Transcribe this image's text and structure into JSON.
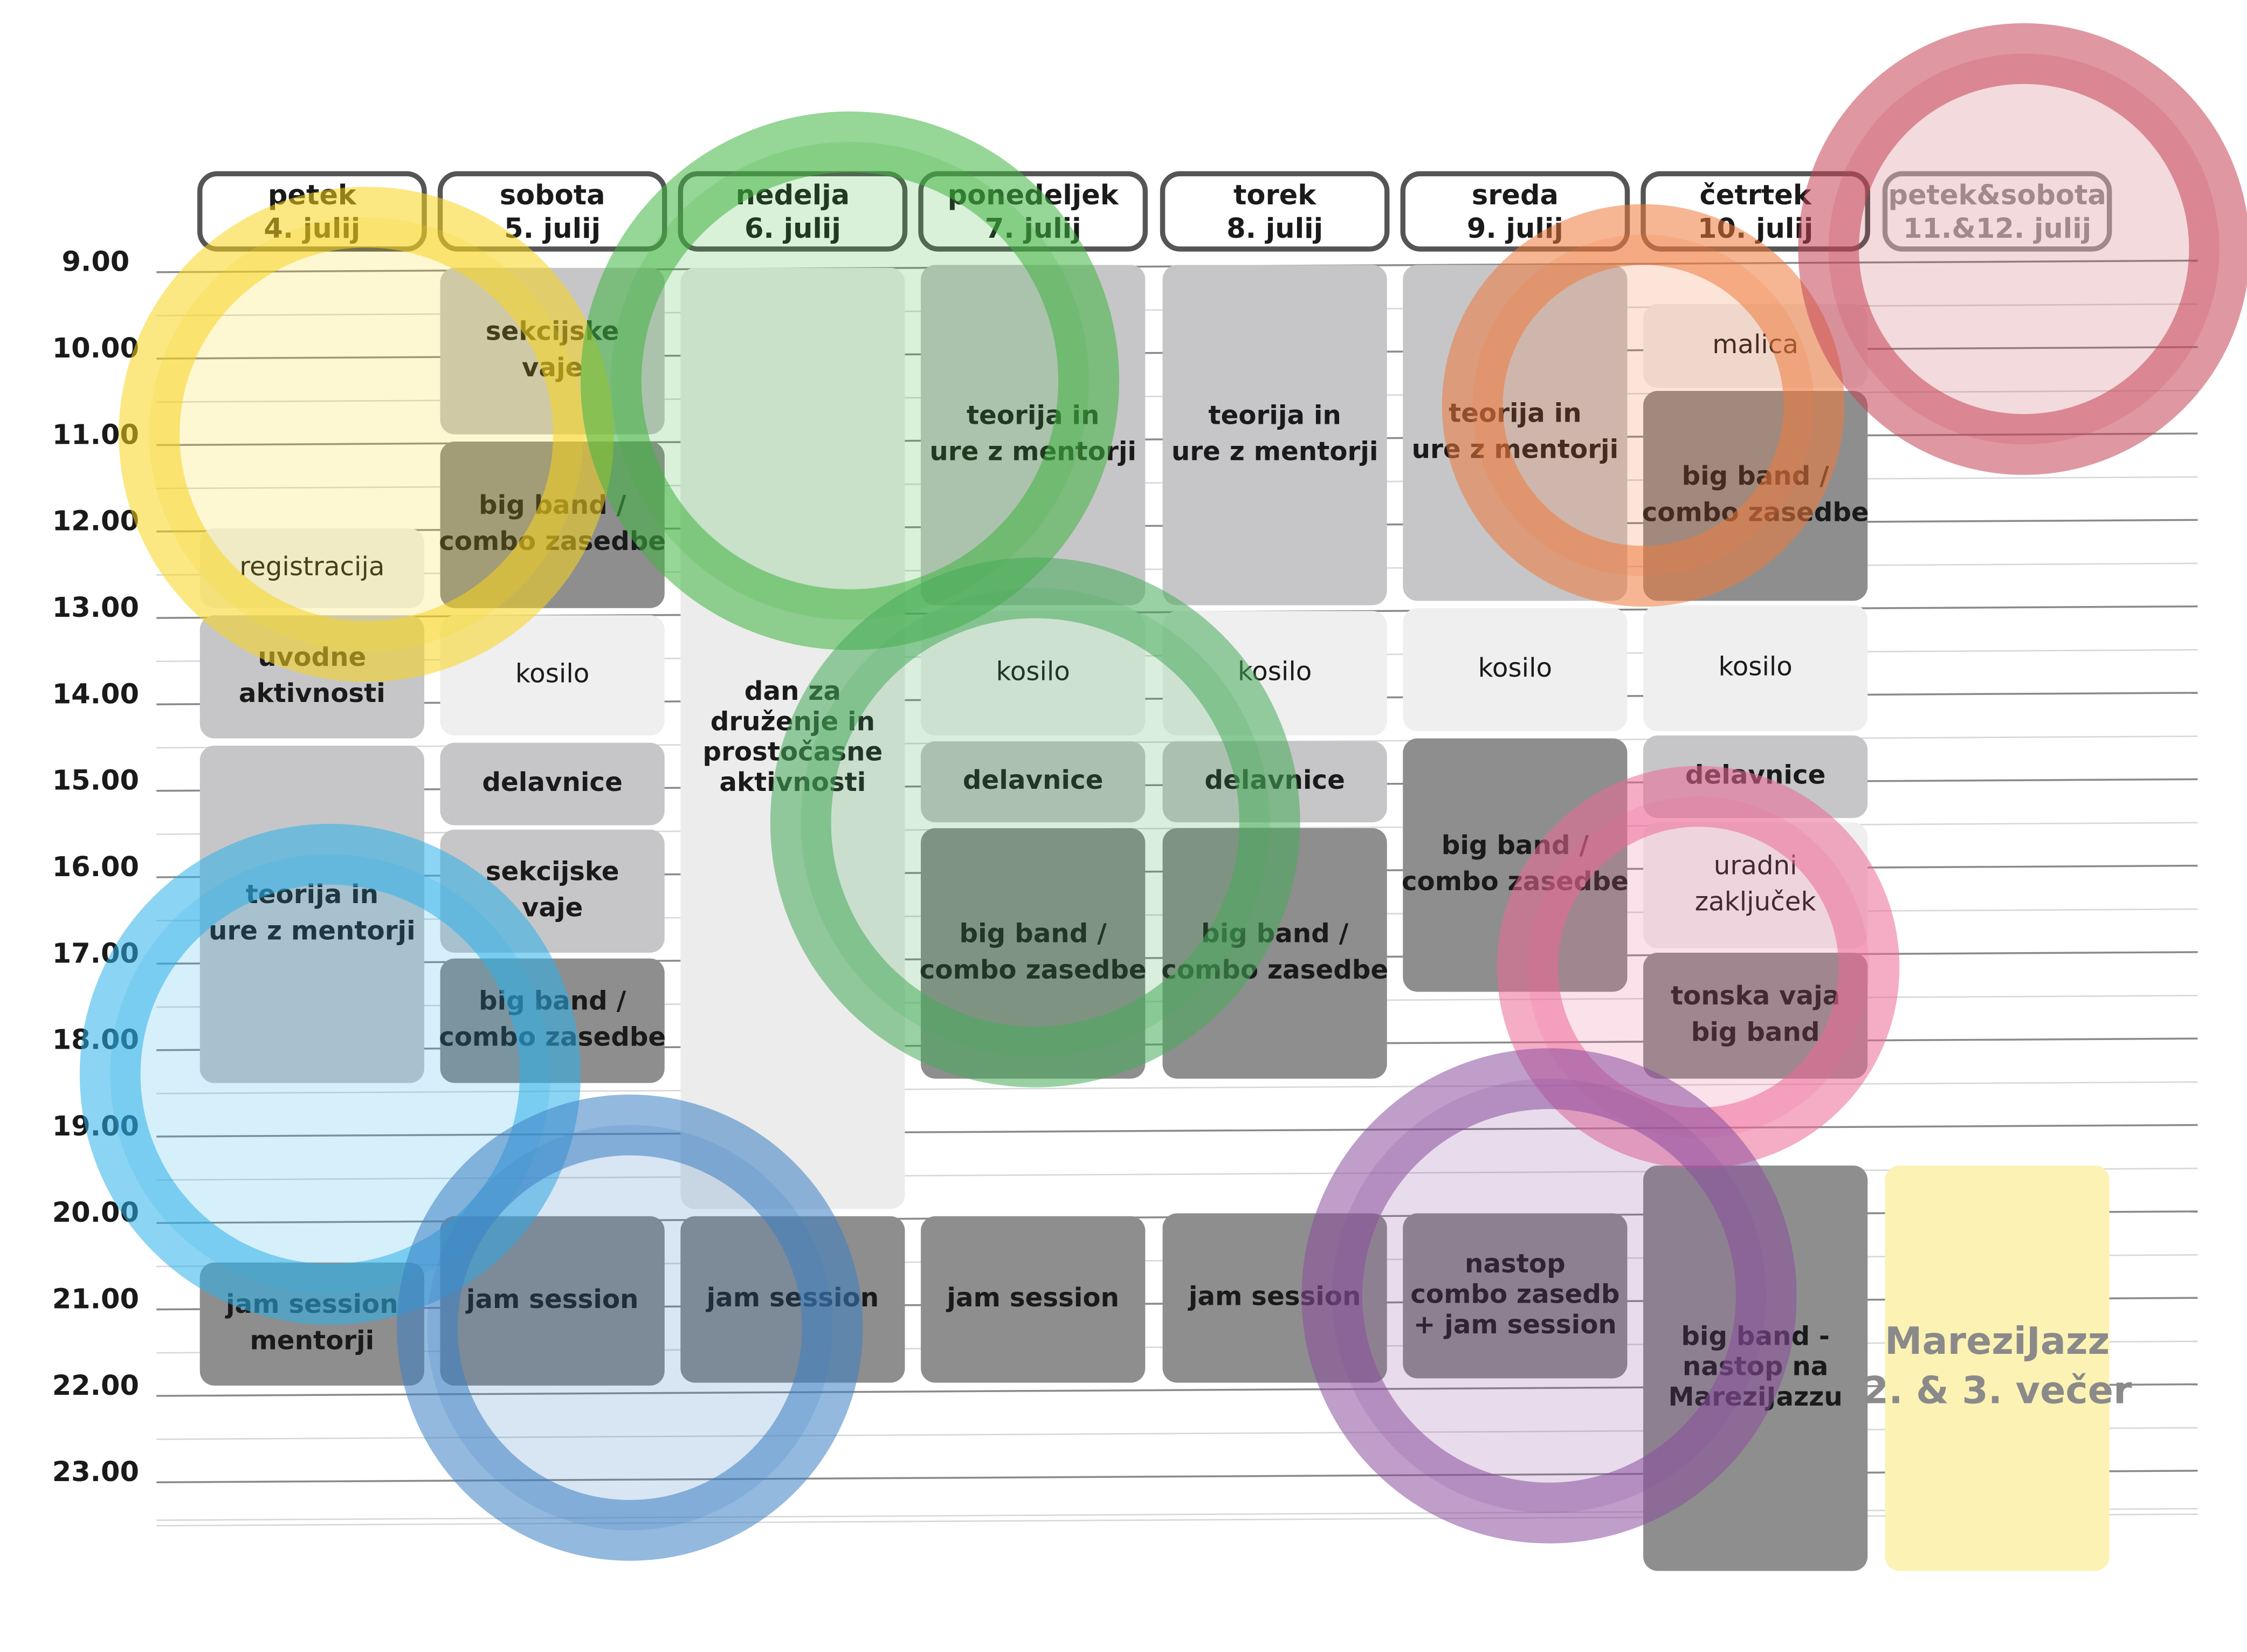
{
  "days": [
    {
      "name": "petek",
      "date": "4. julij"
    },
    {
      "name": "sobota",
      "date": "5. julij"
    },
    {
      "name": "nedelja",
      "date": "6. julij"
    },
    {
      "name": "ponedeljek",
      "date": "7. julij"
    },
    {
      "name": "torek",
      "date": "8. julij"
    },
    {
      "name": "sreda",
      "date": "9. julij"
    },
    {
      "name": "četrtek",
      "date": "10. julij"
    },
    {
      "name": "petek&sobota",
      "date": "11.&12. julij"
    }
  ],
  "times": [
    "9.00",
    "10.00",
    "11.00",
    "12.00",
    "13.00",
    "14.00",
    "15.00",
    "16.00",
    "17.00",
    "18.00",
    "19.00",
    "20.00",
    "21.00",
    "22.00",
    "23.00"
  ],
  "columns": [
    [
      {
        "lines": [
          "registracija"
        ]
      },
      {
        "lines": [
          "uvodne",
          "aktivnosti"
        ]
      },
      {
        "lines": [
          "teorija in",
          "ure z mentorji"
        ]
      },
      {
        "lines": [
          "jam session",
          "mentorji"
        ]
      }
    ],
    [
      {
        "lines": [
          "sekcijske",
          "vaje"
        ]
      },
      {
        "lines": [
          "big band /",
          "combo zasedbe"
        ]
      },
      {
        "lines": [
          "kosilo"
        ]
      },
      {
        "lines": [
          "delavnice"
        ]
      },
      {
        "lines": [
          "sekcijske",
          "vaje"
        ]
      },
      {
        "lines": [
          "big band /",
          "combo zasedbe"
        ]
      },
      {
        "lines": [
          "jam session"
        ]
      }
    ],
    [
      {
        "lines": [
          "dan za",
          "druženje in",
          "prostočasne",
          "aktivnosti"
        ]
      },
      {
        "lines": [
          "jam session"
        ]
      }
    ],
    [
      {
        "lines": [
          "teorija in",
          "ure z mentorji"
        ]
      },
      {
        "lines": [
          "kosilo"
        ]
      },
      {
        "lines": [
          "delavnice"
        ]
      },
      {
        "lines": [
          "big band /",
          "combo zasedbe"
        ]
      },
      {
        "lines": [
          "jam session"
        ]
      }
    ],
    [
      {
        "lines": [
          "teorija in",
          "ure z mentorji"
        ]
      },
      {
        "lines": [
          "kosilo"
        ]
      },
      {
        "lines": [
          "delavnice"
        ]
      },
      {
        "lines": [
          "big band /",
          "combo zasedbe"
        ]
      },
      {
        "lines": [
          "jam session"
        ]
      }
    ],
    [
      {
        "lines": [
          "teorija in",
          "ure z mentorji"
        ]
      },
      {
        "lines": [
          "kosilo"
        ]
      },
      {
        "lines": [
          "big band /",
          "combo zasedbe"
        ]
      },
      {
        "lines": [
          "nastop",
          "combo zasedb",
          "+ jam session"
        ]
      }
    ],
    [
      {
        "lines": [
          "malica"
        ]
      },
      {
        "lines": [
          "big band /",
          "combo zasedbe"
        ]
      },
      {
        "lines": [
          "kosilo"
        ]
      },
      {
        "lines": [
          "delavnice"
        ]
      },
      {
        "lines": [
          "uradni",
          "zaključek"
        ]
      },
      {
        "lines": [
          "tonska vaja",
          "big band"
        ]
      },
      {
        "lines": [
          "big band -",
          "nastop na",
          "MareziJazzu"
        ]
      }
    ],
    [
      {
        "lines": [
          "MareziJazz",
          "2. & 3. večer"
        ]
      }
    ]
  ]
}
